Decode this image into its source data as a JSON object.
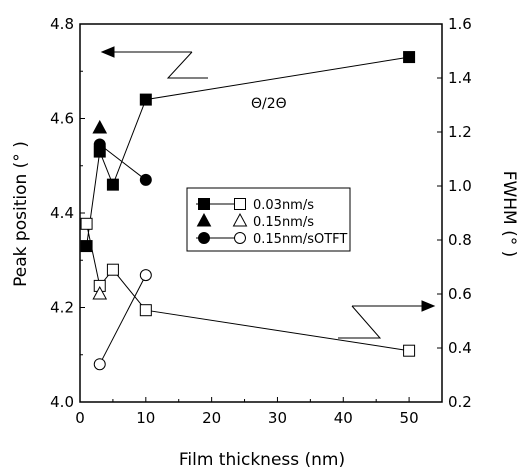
{
  "chart_data": {
    "type": "scatter",
    "xlabel": "Film thickness (nm)",
    "ylabel_left": "Peak position (° )",
    "ylabel_right": "FWHM (° )",
    "annotation": "Θ/2Θ",
    "xlim": [
      0,
      55
    ],
    "ylim_left": [
      4.0,
      4.8
    ],
    "ylim_right": [
      0.2,
      1.6
    ],
    "x_ticks": [
      0,
      10,
      20,
      30,
      40,
      50
    ],
    "y_left_ticks": [
      "4.0",
      "4.2",
      "4.4",
      "4.6",
      "4.8"
    ],
    "y_right_ticks": [
      "0.2",
      "0.4",
      "0.6",
      "0.8",
      "1.0",
      "1.2",
      "1.4",
      "1.6"
    ],
    "legend_position": "center-right",
    "series": [
      {
        "name": "0.03nm/s",
        "axis": "left",
        "marker": "square",
        "filled": true,
        "x": [
          1,
          3,
          5,
          10,
          50
        ],
        "y": [
          4.33,
          4.53,
          4.46,
          4.64,
          4.73
        ]
      },
      {
        "name": "0.15nm/s",
        "axis": "left",
        "marker": "triangle",
        "filled": true,
        "x": [
          3
        ],
        "y": [
          4.58
        ]
      },
      {
        "name": "0.15nm/sOTFT",
        "axis": "left",
        "marker": "circle",
        "filled": true,
        "x": [
          3,
          10
        ],
        "y": [
          4.545,
          4.47
        ]
      },
      {
        "name": "0.03nm/s",
        "axis": "right",
        "marker": "square",
        "filled": false,
        "x": [
          1,
          3,
          5,
          10,
          50
        ],
        "y": [
          0.86,
          0.63,
          0.69,
          0.54,
          0.39
        ]
      },
      {
        "name": "0.15nm/s",
        "axis": "right",
        "marker": "triangle",
        "filled": false,
        "x": [
          3
        ],
        "y": [
          0.6
        ]
      },
      {
        "name": "0.15nm/sOTFT",
        "axis": "right",
        "marker": "circle",
        "filled": false,
        "x": [
          3,
          10
        ],
        "y": [
          0.34,
          0.67
        ]
      }
    ]
  }
}
